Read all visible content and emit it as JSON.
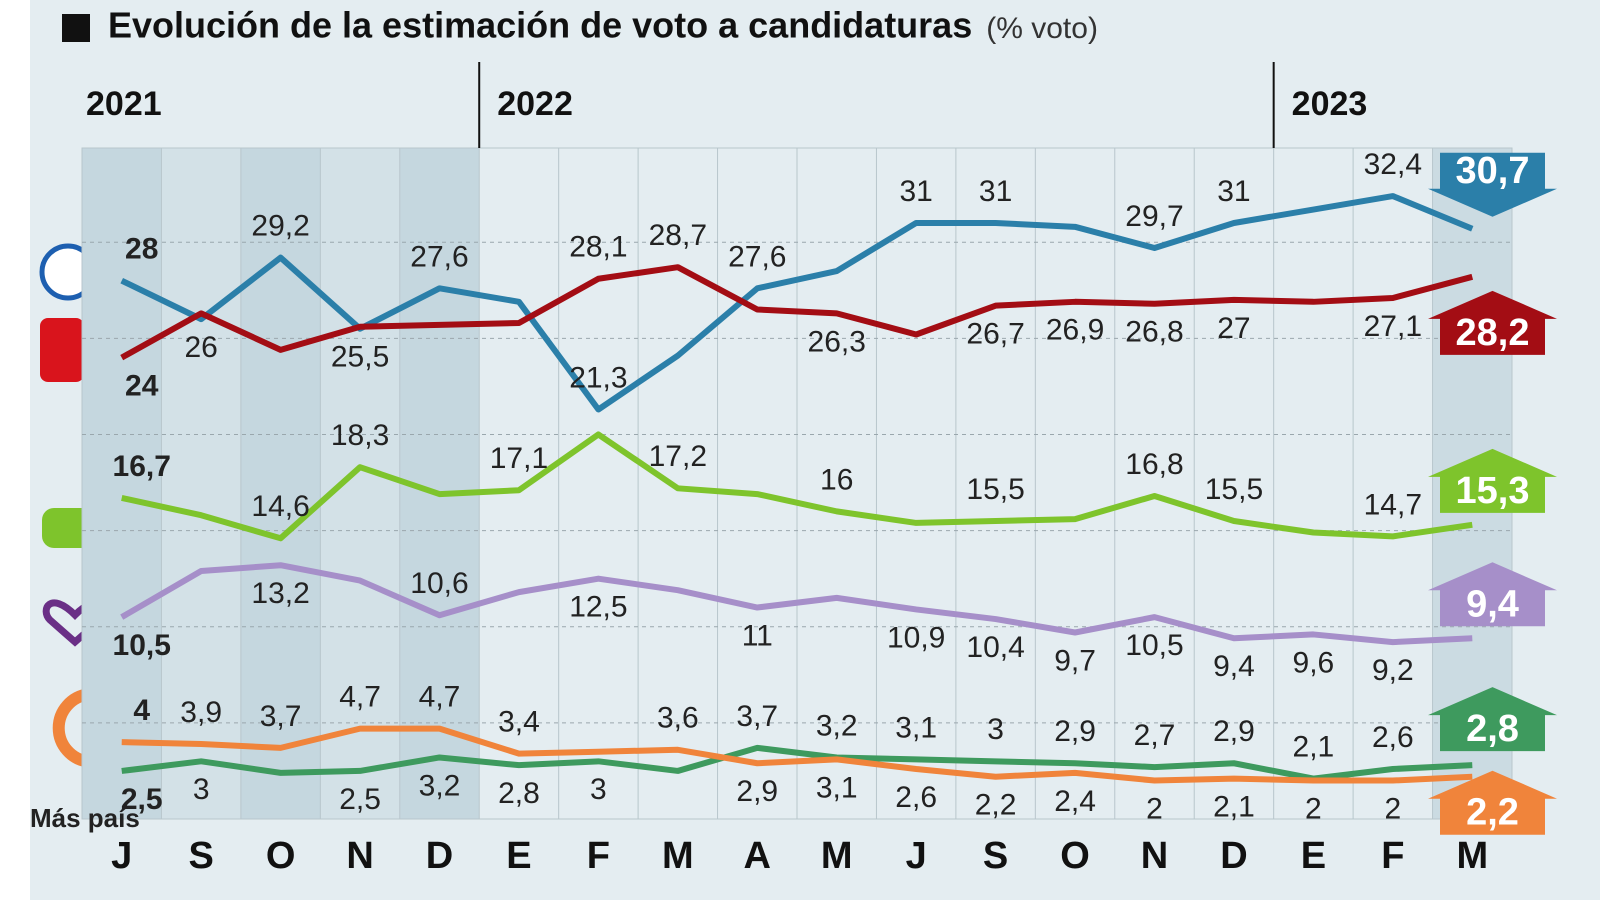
{
  "chart_data": {
    "type": "line",
    "title": "Evolución de la estimación de voto a candidaturas",
    "subtitle": "(% voto)",
    "categories": [
      "J",
      "S",
      "O",
      "N",
      "D",
      "E",
      "F",
      "M",
      "A",
      "M",
      "J",
      "S",
      "O",
      "N",
      "D",
      "E",
      "F",
      "M"
    ],
    "years": [
      "2021",
      "2022",
      "2023"
    ],
    "year_starts": [
      0,
      5,
      15
    ],
    "ylim": [
      0,
      34.9
    ],
    "ygrid": [
      5,
      10,
      15,
      20,
      25,
      30
    ],
    "series": [
      {
        "color": "#2b7fa9",
        "values": [
          28,
          26,
          29.2,
          25.5,
          27.6,
          26.9,
          21.3,
          24.1,
          27.6,
          28.5,
          31,
          31,
          30.8,
          29.7,
          31,
          31.7,
          32.4,
          30.7
        ],
        "value_labels": [
          "28",
          "26",
          "29,2",
          "25,5",
          "27,6",
          null,
          "21,3",
          null,
          "27,6",
          null,
          "31",
          "31",
          null,
          "29,7",
          "31",
          null,
          "32,4",
          "30,7"
        ]
      },
      {
        "color": "#a30d14",
        "values": [
          24,
          26.3,
          24.4,
          25.6,
          25.7,
          25.8,
          28.1,
          28.7,
          26.5,
          26.3,
          25.2,
          26.7,
          26.9,
          26.8,
          27,
          26.9,
          27.1,
          28.2
        ],
        "value_labels": [
          "24",
          null,
          null,
          null,
          null,
          null,
          "28,1",
          "28,7",
          null,
          "26,3",
          null,
          "26,7",
          "26,9",
          "26,8",
          "27",
          null,
          "27,1",
          "28,2"
        ]
      },
      {
        "color": "#7ec42c",
        "values": [
          16.7,
          15.8,
          14.6,
          18.3,
          16.9,
          17.1,
          20,
          17.2,
          16.9,
          16,
          15.4,
          15.5,
          15.6,
          16.8,
          15.5,
          14.9,
          14.7,
          15.3
        ],
        "value_labels": [
          "16,7",
          null,
          "14,6",
          "18,3",
          null,
          "17,1",
          null,
          "17,2",
          null,
          "16",
          null,
          "15,5",
          null,
          "16,8",
          "15,5",
          null,
          "14,7",
          "15,3"
        ]
      },
      {
        "color": "#a68fc9",
        "values": [
          10.5,
          12.9,
          13.2,
          12.4,
          10.6,
          11.8,
          12.5,
          11.9,
          11,
          11.5,
          10.9,
          10.4,
          9.7,
          10.5,
          9.4,
          9.6,
          9.2,
          9.4
        ],
        "value_labels": [
          "10,5",
          null,
          "13,2",
          null,
          "10,6",
          null,
          "12,5",
          null,
          "11",
          null,
          "10,9",
          "10,4",
          "9,7",
          "10,5",
          "9,4",
          "9,6",
          "9,2",
          "9,4"
        ]
      },
      {
        "name": "Más país",
        "color": "#3e9a5e",
        "values": [
          2.5,
          3,
          2.4,
          2.5,
          3.2,
          2.8,
          3,
          2.5,
          3.7,
          3.2,
          3.1,
          3,
          2.9,
          2.7,
          2.9,
          2.1,
          2.6,
          2.8
        ],
        "value_labels": [
          "2,5",
          "3",
          null,
          "2,5",
          "3,2",
          "2,8",
          "3",
          null,
          "3,7",
          "3,2",
          "3,1",
          "3",
          "2,9",
          "2,7",
          "2,9",
          "2,1",
          "2,6",
          "2,8"
        ]
      },
      {
        "color": "#f0843b",
        "values": [
          4,
          3.9,
          3.7,
          4.7,
          4.7,
          3.4,
          3.5,
          3.6,
          2.9,
          3.1,
          2.6,
          2.2,
          2.4,
          2,
          2.1,
          2,
          2,
          2.2
        ],
        "value_labels": [
          "4",
          "3,9",
          "3,7",
          "4,7",
          "4,7",
          "3,4",
          null,
          "3,6",
          "2,9",
          "3,1",
          "2,6",
          "2,2",
          "2,4",
          "2",
          "2,1",
          "2",
          "2",
          "2,2"
        ]
      }
    ]
  }
}
